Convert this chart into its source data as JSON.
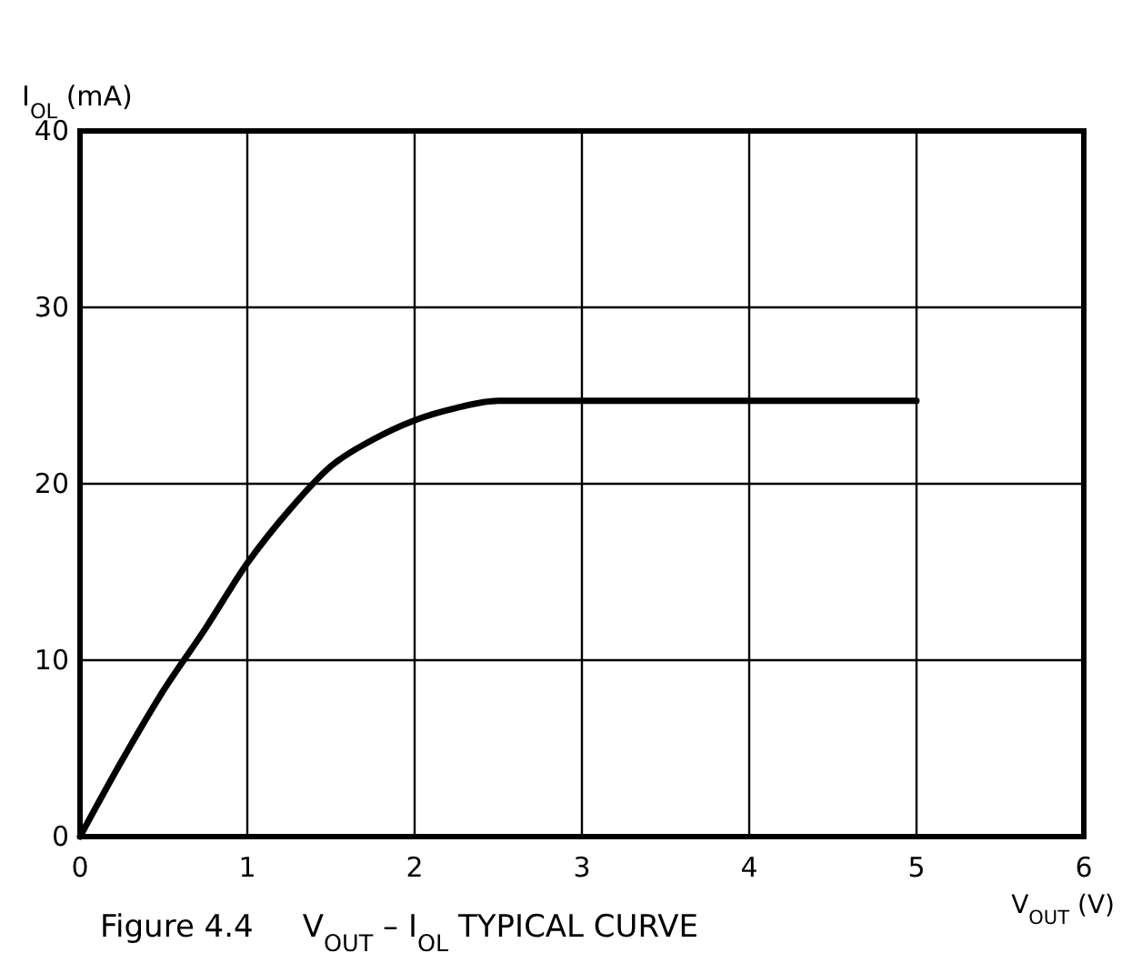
{
  "chart_data": {
    "type": "line",
    "title": "Figure 4.4     V$_{OUT}$ – I$_{OL}$ TYPICAL CURVE",
    "xlabel": "V$_{OUT}$ (V)",
    "ylabel": "I$_{OL}$ (mA)",
    "x": [
      0,
      0.25,
      0.5,
      0.75,
      1,
      1.25,
      1.5,
      1.75,
      2,
      2.25,
      2.5,
      3,
      4,
      5
    ],
    "series": [
      {
        "color": "#000000",
        "values": [
          0,
          4.3,
          8.3,
          11.8,
          15.5,
          18.5,
          21,
          22.5,
          23.6,
          24.3,
          24.7,
          24.7,
          24.7,
          24.7
        ]
      }
    ],
    "xlim": [
      0,
      6
    ],
    "ylim": [
      0,
      40
    ],
    "xticks": [
      0,
      1,
      2,
      3,
      4,
      5,
      6
    ],
    "yticks": [
      0,
      10,
      20,
      30,
      40
    ],
    "grid": true,
    "marker": "none",
    "line_style": "solid"
  }
}
